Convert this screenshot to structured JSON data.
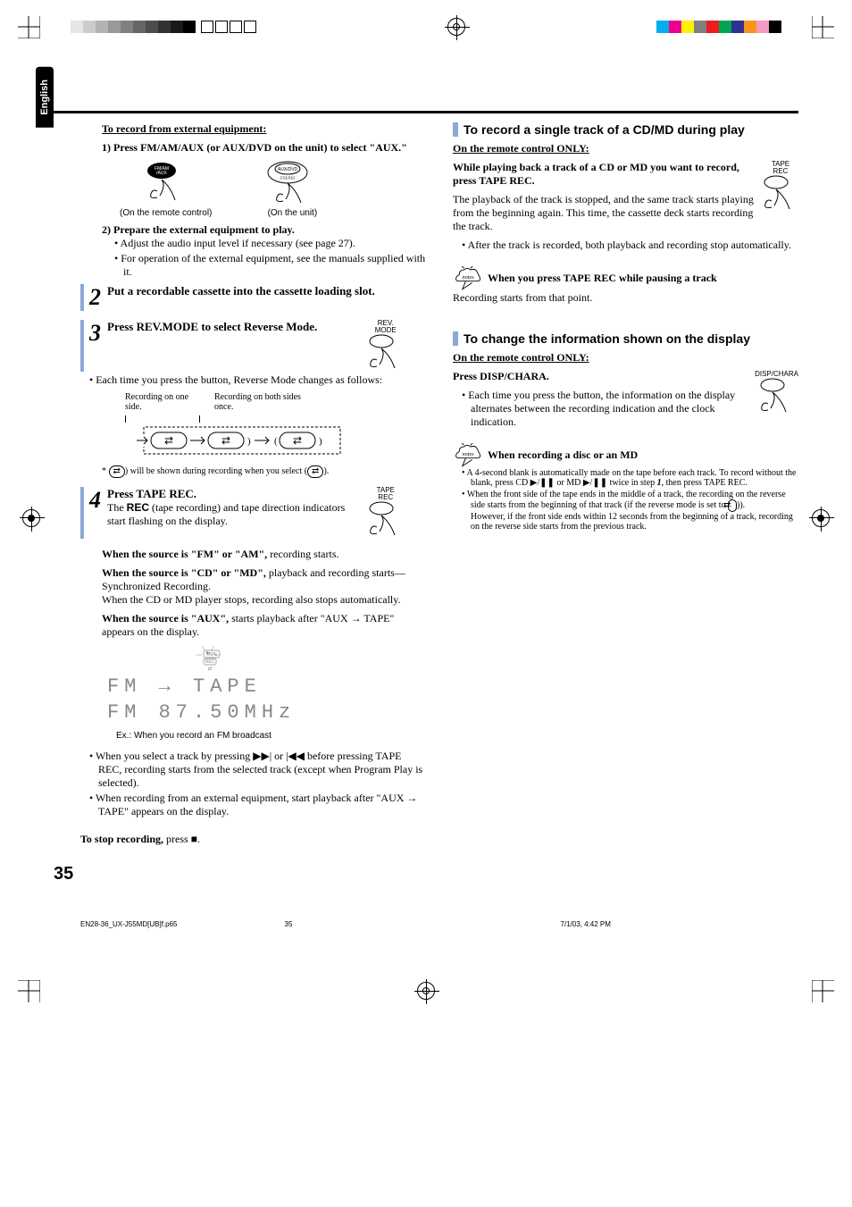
{
  "meta": {
    "lang_tab": "English",
    "page_number": "35",
    "footer_file": "EN28-36_UX-J55MD[UB]f.p65",
    "footer_page": "35",
    "footer_timestamp": "7/1/03, 4:42 PM"
  },
  "registration": {
    "gray_bars": [
      "#e6e6e6",
      "#cccccc",
      "#b3b3b3",
      "#999999",
      "#808080",
      "#666666",
      "#4d4d4d",
      "#333333",
      "#1a1a1a",
      "#000000"
    ],
    "color_bars": [
      "#00aeef",
      "#ec008c",
      "#fff200",
      "#808080",
      "#ed1c24",
      "#00a651",
      "#2e3192",
      "#f7941d",
      "#f49ac1",
      "#000000"
    ],
    "white_boxes_count": 4
  },
  "left": {
    "rec_ext_heading": "To record from external equipment:",
    "step1_num": "1)",
    "step1_text": "Press FM/AM/AUX (or AUX/DVD on the unit) to select \"AUX.\"",
    "btn_remote": "FM/AM\n/AUX",
    "btn_unit_top": "AUX/DVD",
    "btn_unit_bottom": "FM/AM",
    "caption_remote": "(On the remote control)",
    "caption_unit": "(On the unit)",
    "step2_num": "2)",
    "step2_text": "Prepare the external equipment to play.",
    "step2_b1": "Adjust the audio input level if necessary (see page 27).",
    "step2_b2": "For operation of the external equipment, see the manuals supplied with it.",
    "s2_num": "2",
    "s2_head": "Put a recordable cassette into the cassette loading slot.",
    "s3_num": "3",
    "s3_head": "Press REV.MODE to select Reverse Mode.",
    "s3_btn": "REV.\nMODE",
    "s3_bullet": "Each time you press the button, Reverse Mode changes as follows:",
    "flow_label1": "Recording on one side.",
    "flow_label2": "Recording on both sides once.",
    "flow_note_pre": "*",
    "flow_note": "will be shown during recording when you select",
    "s4_num": "4",
    "s4_head": "Press TAPE REC.",
    "s4_btn": "TAPE\nREC",
    "s4_text": "The REC (tape recording) and tape direction indicators start flashing on the display.",
    "s4_rec": "REC",
    "src_fm_pre": "When the source is \"FM\" or \"AM\",",
    "src_fm_post": " recording starts.",
    "src_cd_pre": "When the source is \"CD\" or \"MD\",",
    "src_cd_post": " playback and recording starts—Synchronized Recording.",
    "src_cd_post2": "When the CD or MD player stops, recording also stops automatically.",
    "src_aux_pre": "When the source is \"AUX\",",
    "src_aux_post": " starts playback after \"AUX ",
    "src_aux_post2": " TAPE\" appears on the display.",
    "lcd_badge_rec": "REC",
    "lcd_badge_tape": "TAPE",
    "lcd_line1": "FM   →  TAPE",
    "lcd_line2": "FM  87.50MHz",
    "lcd_caption": "Ex.:   When you record an FM broadcast",
    "bullet_a": "When you select a track by pressing ",
    "bullet_a_mid": " or ",
    "bullet_a_post": " before pressing TAPE REC, recording starts from the selected track (except when Program Play is selected).",
    "bullet_b": "When recording from an external equipment, start playback after \"AUX ",
    "bullet_b_post": " TAPE\" appears on the display.",
    "stop_pre": "To stop recording,",
    "stop_post": " press ",
    "stop_end": "."
  },
  "right": {
    "h1": "To record a single track of a CD/MD during play",
    "sub1": "On the remote control ONLY:",
    "p1_bold": "While playing back a track of a CD or MD you want to record, press TAPE REC.",
    "btn1": "TAPE\nREC",
    "p2": "The playback of the track is stopped, and the same track starts playing from the beginning again. This time, the cassette deck starts recording the track.",
    "p2_b": "After the track is recorded, both playback and recording stop automatically.",
    "note1_head": "When you press TAPE REC while pausing a track",
    "note1_body": "Recording starts from that point.",
    "h2": "To change the information shown on the display",
    "sub2": "On the remote control ONLY:",
    "p3_bold": "Press DISP/CHARA.",
    "btn2": "DISP/CHARA",
    "p3_b": "Each time you press the button, the information on the display alternates between the recording indication and the clock indication.",
    "note2_head": "When recording a disc or an MD",
    "note2_b1_pre": "A 4-second blank is automatically made on the tape before each track. To record without the blank, press CD ",
    "note2_b1_mid": " or MD ",
    "note2_b1_post": " twice in step ",
    "note2_b1_step": "1",
    "note2_b1_end": ", then press TAPE REC.",
    "note2_b2_pre": "When the front side of the tape ends in the middle of a track, the recording on the reverse side starts from the beginning of that track (if the reverse mode is set to ",
    "note2_b2_post": ").",
    "note2_b2_extra": "However, if the front side ends within 12 seconds from the beginning of a track, recording on the reverse side starts from the previous track."
  },
  "symbols": {
    "next": "▶▶|",
    "prev": "|◀◀",
    "arrow": "→",
    "play_pause": "▶/❚❚",
    "stop": "■",
    "rev_both": "⇄",
    "rev_cont": "(⇄)"
  },
  "colors": {
    "accent_blue": "#8aa9d6",
    "lcd_gray": "#888888"
  }
}
